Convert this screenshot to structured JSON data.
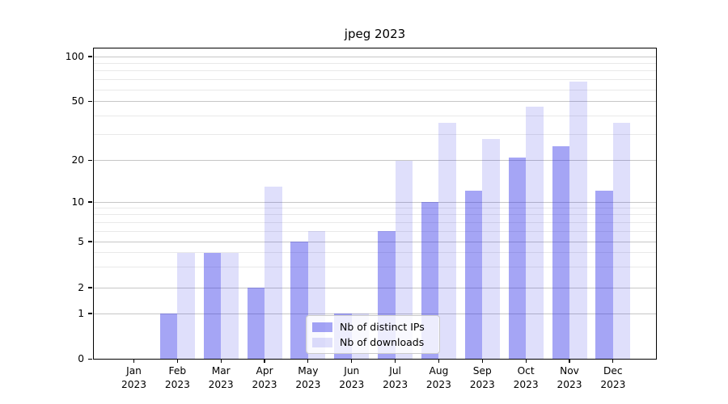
{
  "title": "jpeg 2023",
  "chart_data": {
    "type": "bar",
    "title": "jpeg 2023",
    "categories": [
      "Jan 2023",
      "Feb 2023",
      "Mar 2023",
      "Apr 2023",
      "May 2023",
      "Jun 2023",
      "Jul 2023",
      "Aug 2023",
      "Sep 2023",
      "Oct 2023",
      "Nov 2023",
      "Dec 2023"
    ],
    "series": [
      {
        "name": "Nb of distinct IPs",
        "color": "rgba(40,40,230,0.42)",
        "values": [
          0,
          1,
          4,
          2,
          5,
          1,
          6,
          10,
          12,
          21,
          25,
          12
        ]
      },
      {
        "name": "Nb of downloads",
        "color": "rgba(40,40,230,0.15)",
        "values": [
          0,
          4,
          4,
          13,
          6,
          1,
          20,
          36,
          28,
          46,
          68,
          36
        ]
      }
    ],
    "xlabel": "",
    "ylabel": "",
    "y_axis": {
      "scale": "log-like",
      "major_ticks": [
        0,
        1,
        2,
        5,
        10,
        20,
        50,
        100
      ],
      "minor_gridlines": [
        3,
        4,
        6,
        7,
        8,
        9,
        30,
        40,
        60,
        70,
        80,
        90
      ],
      "ylim": [
        0,
        115
      ]
    },
    "grid": true,
    "legend_position": "lower center",
    "background_color": "#ffffff"
  }
}
